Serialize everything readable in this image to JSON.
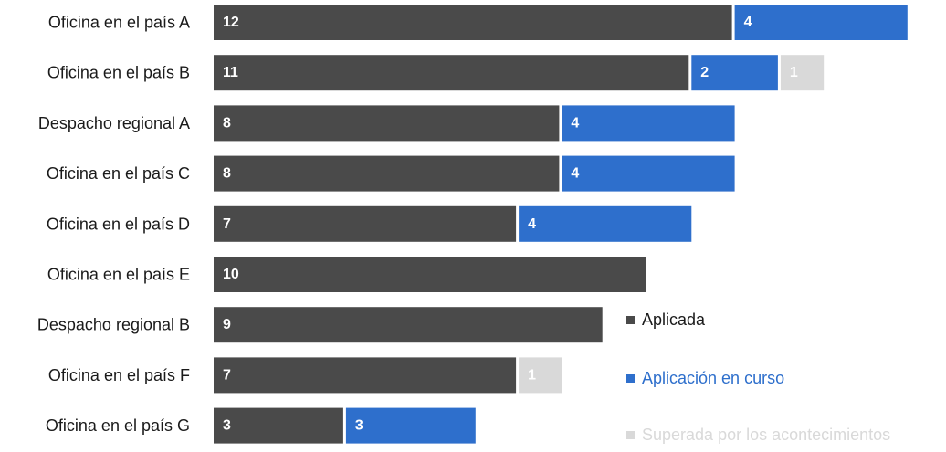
{
  "chart_data": {
    "type": "bar",
    "orientation": "horizontal",
    "stacked": true,
    "categories": [
      "Oficina en el país A",
      "Oficina en el país B",
      "Despacho regional A",
      "Oficina en el país C",
      "Oficina en el país D",
      "Oficina en el país E",
      "Despacho regional B",
      "Oficina en el país F",
      "Oficina en el país G"
    ],
    "series": [
      {
        "name": "Aplicada",
        "color": "#4a4a4a",
        "values": [
          12,
          11,
          8,
          8,
          7,
          10,
          9,
          7,
          3
        ]
      },
      {
        "name": "Aplicación en curso",
        "color": "#2e6fcc",
        "values": [
          4,
          2,
          4,
          4,
          4,
          0,
          0,
          0,
          3
        ]
      },
      {
        "name": "Superada por los acontecimientos",
        "color": "#d9d9d9",
        "values": [
          0,
          1,
          0,
          0,
          0,
          0,
          0,
          1,
          0
        ]
      }
    ],
    "title": "",
    "xlabel": "",
    "ylabel": "",
    "grid": false,
    "axes_visible": false,
    "data_labels": true,
    "legend_position": "bottom-right"
  }
}
